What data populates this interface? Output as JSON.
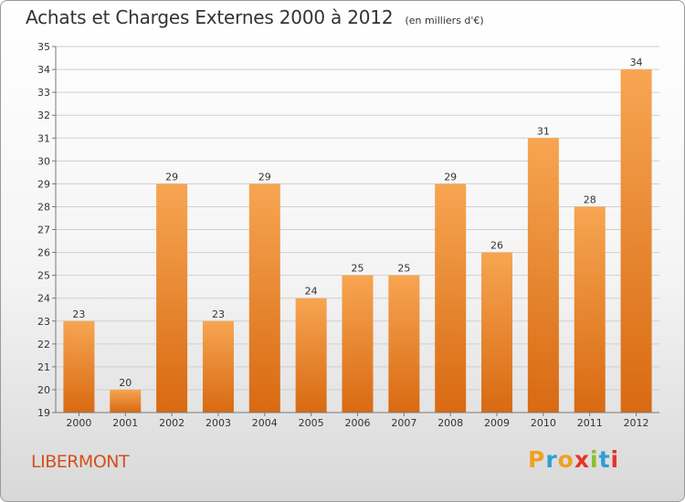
{
  "header": {
    "title": "Achats et Charges Externes 2000 à 2012",
    "unit": "(en milliers d'€)"
  },
  "location": "LIBERMONT",
  "logo": {
    "letters": [
      "P",
      "r",
      "o",
      "x",
      "i",
      "t",
      "i"
    ],
    "colors": [
      "#f0a020",
      "#2a9fd8",
      "#f0a020",
      "#e8322a",
      "#8cbd2e",
      "#2a9fd8",
      "#e8322a"
    ]
  },
  "colors": {
    "bar_top": "#f7a552",
    "bar_bottom": "#d86a12",
    "grid": "#cfcfcf",
    "axis": "#777777"
  },
  "chart_data": {
    "type": "bar",
    "title": "Achats et Charges Externes 2000 à 2012",
    "subtitle": "(en milliers d'€)",
    "categories": [
      "2000",
      "2001",
      "2002",
      "2003",
      "2004",
      "2005",
      "2006",
      "2007",
      "2008",
      "2009",
      "2010",
      "2011",
      "2012"
    ],
    "values": [
      23,
      20,
      29,
      23,
      29,
      24,
      25,
      25,
      29,
      26,
      31,
      28,
      34
    ],
    "ylim": [
      19,
      35
    ],
    "yticks": [
      19,
      20,
      21,
      22,
      23,
      24,
      25,
      26,
      27,
      28,
      29,
      30,
      31,
      32,
      33,
      34,
      35
    ],
    "grid": true,
    "data_labels": true
  }
}
